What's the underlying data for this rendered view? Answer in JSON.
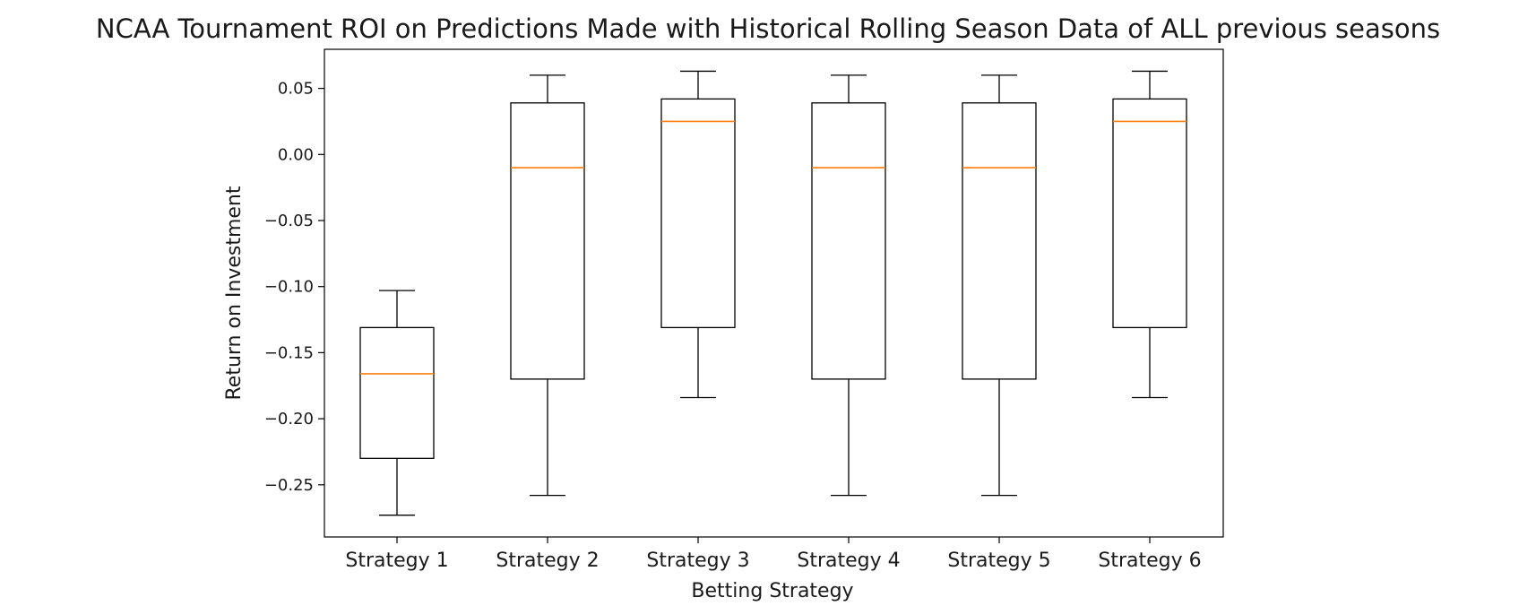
{
  "chart_data": {
    "type": "box",
    "title": "NCAA Tournament ROI on Predictions Made with Historical Rolling Season Data of ALL previous seasons",
    "xlabel": "Betting Strategy",
    "ylabel": "Return on Investment",
    "ylim": [
      -0.29,
      0.08
    ],
    "yticks": [
      0.05,
      0.0,
      -0.05,
      -0.1,
      -0.15,
      -0.2,
      -0.25
    ],
    "ytick_labels": [
      "0.05",
      "0.00",
      "−0.05",
      "−0.10",
      "−0.15",
      "−0.20",
      "−0.25"
    ],
    "grid": false,
    "categories": [
      "Strategy 1",
      "Strategy 2",
      "Strategy 3",
      "Strategy 4",
      "Strategy 5",
      "Strategy 6"
    ],
    "boxes": [
      {
        "whisker_low": -0.273,
        "q1": -0.23,
        "median": -0.166,
        "q3": -0.131,
        "whisker_high": -0.103
      },
      {
        "whisker_low": -0.258,
        "q1": -0.17,
        "median": -0.01,
        "q3": 0.039,
        "whisker_high": 0.06
      },
      {
        "whisker_low": -0.184,
        "q1": -0.131,
        "median": 0.025,
        "q3": 0.042,
        "whisker_high": 0.063
      },
      {
        "whisker_low": -0.258,
        "q1": -0.17,
        "median": -0.01,
        "q3": 0.039,
        "whisker_high": 0.06
      },
      {
        "whisker_low": -0.258,
        "q1": -0.17,
        "median": -0.01,
        "q3": 0.039,
        "whisker_high": 0.06
      },
      {
        "whisker_low": -0.184,
        "q1": -0.131,
        "median": 0.025,
        "q3": 0.042,
        "whisker_high": 0.063
      }
    ],
    "colors": {
      "box": "#000000",
      "median": "#ff7f0e",
      "frame": "#000000"
    }
  }
}
